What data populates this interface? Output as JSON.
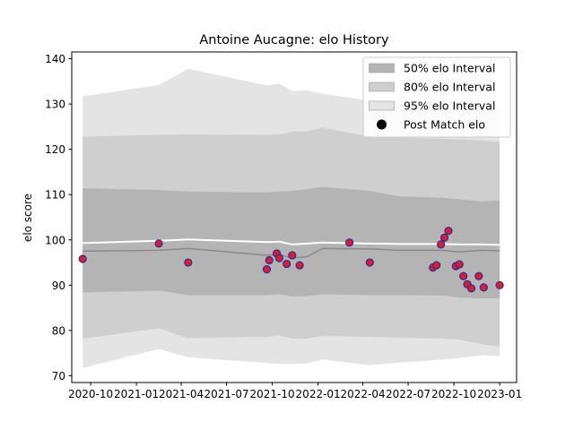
{
  "chart_data": {
    "type": "scatter",
    "title": "Antoine Aucagne: elo History",
    "xlabel": "",
    "ylabel": "elo score",
    "xlim": [
      "2020-08-24",
      "2023-02-04"
    ],
    "ylim": [
      68.5,
      141.5
    ],
    "x_ticks": [
      "2020-10",
      "2021-01",
      "2021-04",
      "2021-07",
      "2021-10",
      "2022-01",
      "2022-04",
      "2022-07",
      "2022-10",
      "2023-01"
    ],
    "y_ticks": [
      70,
      80,
      90,
      100,
      110,
      120,
      130,
      140
    ],
    "grid": false,
    "legend_position": "top-right",
    "colors": {
      "band_50": "#b4b4b4",
      "band_80": "#cfcfcf",
      "band_95": "#e4e4e4",
      "mean_line": "#8a8a8a",
      "upper_line": "#ffffff",
      "point_fill": "#e41a2a",
      "point_edge": "#1f2fa0"
    },
    "legend": [
      {
        "label": "50% elo Interval",
        "kind": "band_50"
      },
      {
        "label": "80% elo Interval",
        "kind": "band_80"
      },
      {
        "label": "95% elo Interval",
        "kind": "band_95"
      },
      {
        "label": "Post Match elo",
        "kind": "point"
      }
    ],
    "bands": {
      "x": [
        "2020-09-15",
        "2021-02-15",
        "2021-04-15",
        "2021-09-20",
        "2021-10-15",
        "2021-11-10",
        "2021-12-10",
        "2022-01-10",
        "2022-04-15",
        "2022-06-15",
        "2022-09-10",
        "2022-10-10",
        "2022-11-25",
        "2023-01-01"
      ],
      "p95_upper": [
        131.7,
        134.2,
        137.8,
        134.1,
        134.5,
        132.9,
        133.0,
        132.3,
        130.7,
        130.6,
        130.2,
        130.2,
        129.3,
        128.7
      ],
      "p80_upper": [
        122.8,
        123.2,
        123.3,
        123.2,
        123.3,
        123.9,
        124.0,
        124.8,
        122.8,
        122.6,
        122.3,
        122.2,
        122.0,
        121.7
      ],
      "p50_upper": [
        111.4,
        111.0,
        110.7,
        110.5,
        110.7,
        110.8,
        111.2,
        111.7,
        110.8,
        109.6,
        109.3,
        109.0,
        108.5,
        108.7
      ],
      "upper_line": [
        99.3,
        99.8,
        100.1,
        99.5,
        99.6,
        99.0,
        99.2,
        99.4,
        99.2,
        99.1,
        99.1,
        99.0,
        99.0,
        98.9
      ],
      "mean": [
        97.5,
        97.7,
        98.1,
        96.6,
        96.8,
        96.0,
        96.3,
        98.1,
        98.0,
        97.7,
        97.7,
        97.3,
        97.7,
        97.6
      ],
      "p50_lower": [
        88.4,
        88.8,
        87.8,
        87.8,
        88.0,
        87.5,
        87.6,
        88.0,
        87.8,
        87.8,
        87.7,
        87.3,
        87.1,
        87.1
      ],
      "p80_lower": [
        78.2,
        80.5,
        78.3,
        78.6,
        78.9,
        78.2,
        78.2,
        78.8,
        78.6,
        78.4,
        78.2,
        78.0,
        77.0,
        76.4
      ],
      "p95_lower": [
        71.7,
        75.9,
        74.1,
        72.8,
        72.6,
        72.6,
        72.7,
        73.6,
        72.3,
        72.9,
        73.6,
        73.9,
        74.5,
        74.3
      ]
    },
    "points": {
      "x": [
        "2020-09-15",
        "2021-02-15",
        "2021-04-15",
        "2021-09-20",
        "2021-09-25",
        "2021-10-10",
        "2021-10-15",
        "2021-10-30",
        "2021-11-10",
        "2021-11-25",
        "2022-03-05",
        "2022-04-15",
        "2022-08-20",
        "2022-08-27",
        "2022-09-05",
        "2022-09-12",
        "2022-09-20",
        "2022-10-05",
        "2022-10-12",
        "2022-10-20",
        "2022-10-28",
        "2022-11-05",
        "2022-11-20",
        "2022-11-30",
        "2023-01-01"
      ],
      "y": [
        95.8,
        99.2,
        95.0,
        93.5,
        95.5,
        97.0,
        96.0,
        94.7,
        96.6,
        94.4,
        99.4,
        95.0,
        93.9,
        94.4,
        99.0,
        100.5,
        102.0,
        94.2,
        94.6,
        92.0,
        90.2,
        89.3,
        92.0,
        89.5,
        90.0
      ]
    }
  }
}
